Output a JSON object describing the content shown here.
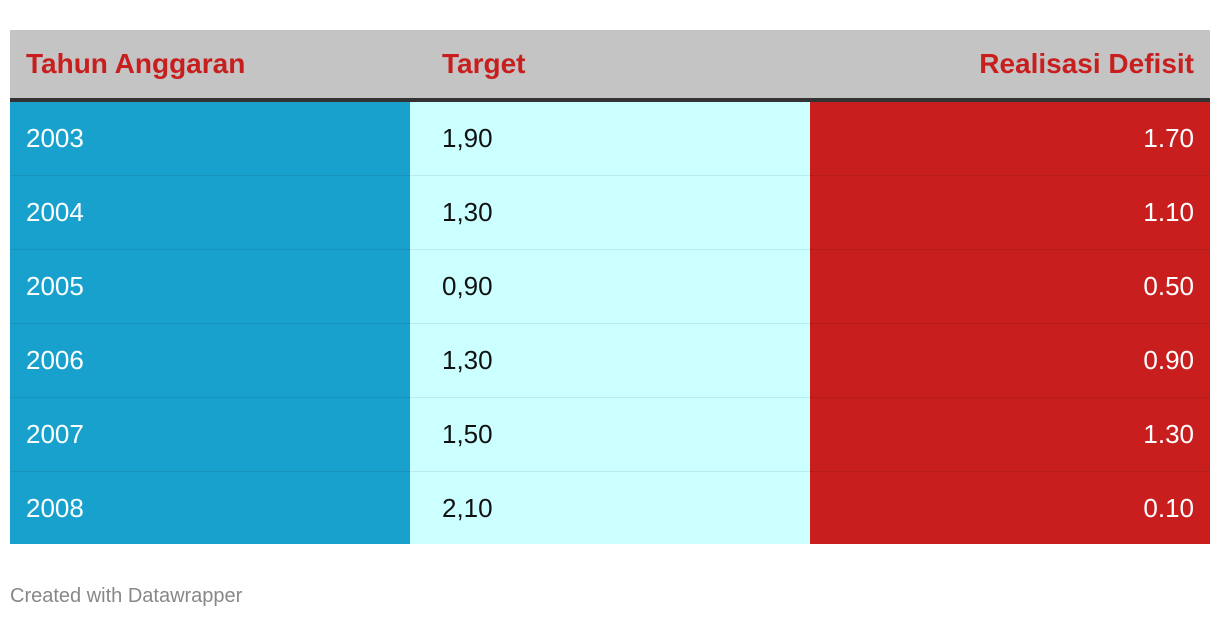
{
  "chart_data": {
    "type": "table",
    "columns": [
      "Tahun Anggaran",
      "Target",
      "Realisasi Defisit"
    ],
    "rows": [
      [
        "2003",
        "1,90",
        "1.70"
      ],
      [
        "2004",
        "1,30",
        "1.10"
      ],
      [
        "2005",
        "0,90",
        "0.50"
      ],
      [
        "2006",
        "1,30",
        "0.90"
      ],
      [
        "2007",
        "1,50",
        "1.30"
      ],
      [
        "2008",
        "2,10",
        "0.10"
      ]
    ],
    "colors": {
      "header_bg": "#c4c4c4",
      "header_text": "#c81e1e",
      "col_year": "#18a1cd",
      "col_target": "#ccffff",
      "col_realisasi": "#c81e1e"
    }
  },
  "footer": "Created with Datawrapper"
}
